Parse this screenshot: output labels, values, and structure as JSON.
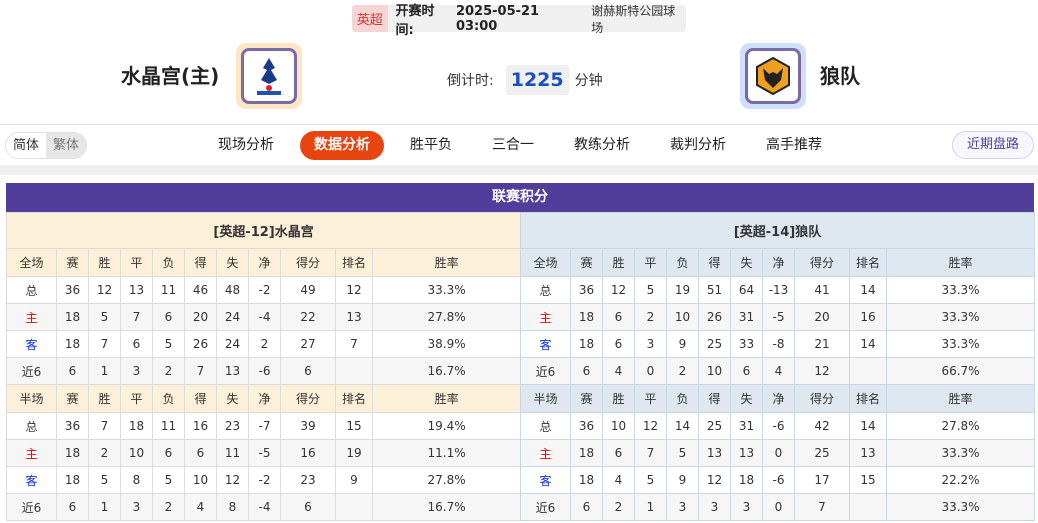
{
  "header": {
    "league": "英超",
    "time_label": "开赛时间:",
    "time": "2025-05-21 03:00",
    "venue": "谢赫斯特公园球场",
    "home": "水晶宫(主)",
    "away": "狼队",
    "countdown_label": "倒计时:",
    "countdown": "1225",
    "countdown_unit": "分钟"
  },
  "nav": {
    "lang": [
      "简体",
      "繁体"
    ],
    "tabs": [
      "现场分析",
      "数据分析",
      "胜平负",
      "三合一",
      "教练分析",
      "裁判分析",
      "高手推荐"
    ],
    "active": "数据分析",
    "recent": "近期盘路"
  },
  "section_title": "联赛积分",
  "columns_full": [
    "全场",
    "赛",
    "胜",
    "平",
    "负",
    "得",
    "失",
    "净",
    "得分",
    "排名",
    "胜率"
  ],
  "columns_half": [
    "半场",
    "赛",
    "胜",
    "平",
    "负",
    "得",
    "失",
    "净",
    "得分",
    "排名",
    "胜率"
  ],
  "colors": {
    "accent": "#e8440f",
    "title": "#503e9a",
    "home_label": "#e00000",
    "away_label": "#1030d0"
  },
  "tables": [
    {
      "title": "[英超-12]水晶宫",
      "full": [
        [
          "总",
          "36",
          "12",
          "13",
          "11",
          "46",
          "48",
          "-2",
          "49",
          "12",
          "33.3%"
        ],
        [
          "主",
          "18",
          "5",
          "7",
          "6",
          "20",
          "24",
          "-4",
          "22",
          "13",
          "27.8%"
        ],
        [
          "客",
          "18",
          "7",
          "6",
          "5",
          "26",
          "24",
          "2",
          "27",
          "7",
          "38.9%"
        ],
        [
          "近6",
          "6",
          "1",
          "3",
          "2",
          "7",
          "13",
          "-6",
          "6",
          "",
          "16.7%"
        ]
      ],
      "half": [
        [
          "总",
          "36",
          "7",
          "18",
          "11",
          "16",
          "23",
          "-7",
          "39",
          "15",
          "19.4%"
        ],
        [
          "主",
          "18",
          "2",
          "10",
          "6",
          "6",
          "11",
          "-5",
          "16",
          "19",
          "11.1%"
        ],
        [
          "客",
          "18",
          "5",
          "8",
          "5",
          "10",
          "12",
          "-2",
          "23",
          "9",
          "27.8%"
        ],
        [
          "近6",
          "6",
          "1",
          "3",
          "2",
          "4",
          "8",
          "-4",
          "6",
          "",
          "16.7%"
        ]
      ]
    },
    {
      "title": "[英超-14]狼队",
      "full": [
        [
          "总",
          "36",
          "12",
          "5",
          "19",
          "51",
          "64",
          "-13",
          "41",
          "14",
          "33.3%"
        ],
        [
          "主",
          "18",
          "6",
          "2",
          "10",
          "26",
          "31",
          "-5",
          "20",
          "16",
          "33.3%"
        ],
        [
          "客",
          "18",
          "6",
          "3",
          "9",
          "25",
          "33",
          "-8",
          "21",
          "14",
          "33.3%"
        ],
        [
          "近6",
          "6",
          "4",
          "0",
          "2",
          "10",
          "6",
          "4",
          "12",
          "",
          "66.7%"
        ]
      ],
      "half": [
        [
          "总",
          "36",
          "10",
          "12",
          "14",
          "25",
          "31",
          "-6",
          "42",
          "14",
          "27.8%"
        ],
        [
          "主",
          "18",
          "6",
          "7",
          "5",
          "13",
          "13",
          "0",
          "25",
          "13",
          "33.3%"
        ],
        [
          "客",
          "18",
          "4",
          "5",
          "9",
          "12",
          "18",
          "-6",
          "17",
          "15",
          "22.2%"
        ],
        [
          "近6",
          "6",
          "2",
          "1",
          "3",
          "3",
          "3",
          "0",
          "7",
          "",
          "33.3%"
        ]
      ]
    }
  ]
}
